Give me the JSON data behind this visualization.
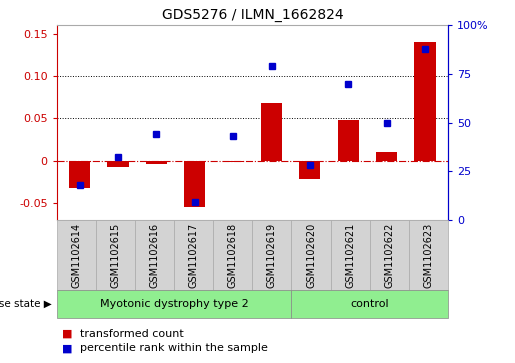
{
  "title": "GDS5276 / ILMN_1662824",
  "samples": [
    "GSM1102614",
    "GSM1102615",
    "GSM1102616",
    "GSM1102617",
    "GSM1102618",
    "GSM1102619",
    "GSM1102620",
    "GSM1102621",
    "GSM1102622",
    "GSM1102623"
  ],
  "transformed_count": [
    -0.033,
    -0.008,
    -0.004,
    -0.055,
    -0.002,
    0.068,
    -0.022,
    0.048,
    0.01,
    0.14
  ],
  "percentile_rank": [
    0.18,
    0.32,
    0.44,
    0.09,
    0.43,
    0.79,
    0.28,
    0.7,
    0.5,
    0.88
  ],
  "disease_groups": [
    {
      "label": "Myotonic dystrophy type 2",
      "start": 0,
      "end": 6,
      "color": "#90EE90"
    },
    {
      "label": "control",
      "start": 6,
      "end": 10,
      "color": "#90EE90"
    }
  ],
  "left_ylim": [
    -0.07,
    0.16
  ],
  "right_ylim": [
    0,
    1.0
  ],
  "left_yticks": [
    -0.05,
    0.0,
    0.05,
    0.1,
    0.15
  ],
  "right_yticks": [
    0.0,
    0.25,
    0.5,
    0.75,
    1.0
  ],
  "right_yticklabels": [
    "0",
    "25",
    "50",
    "75",
    "100%"
  ],
  "left_yticklabels": [
    "-0.05",
    "0",
    "0.05",
    "0.10",
    "0.15"
  ],
  "bar_color": "#CC0000",
  "dot_color": "#0000CC",
  "zero_line_color": "#CC0000",
  "grid_dotted_color": "#000000",
  "background_color": "#ffffff",
  "bar_width": 0.55,
  "sample_box_color": "#d3d3d3",
  "sample_box_edge": "#aaaaaa",
  "disease_box_color": "#90EE90",
  "disease_box_edge": "#888888",
  "legend_square_size": 8,
  "title_fontsize": 10,
  "axis_fontsize": 8,
  "sample_fontsize": 7,
  "disease_fontsize": 8,
  "legend_fontsize": 8
}
